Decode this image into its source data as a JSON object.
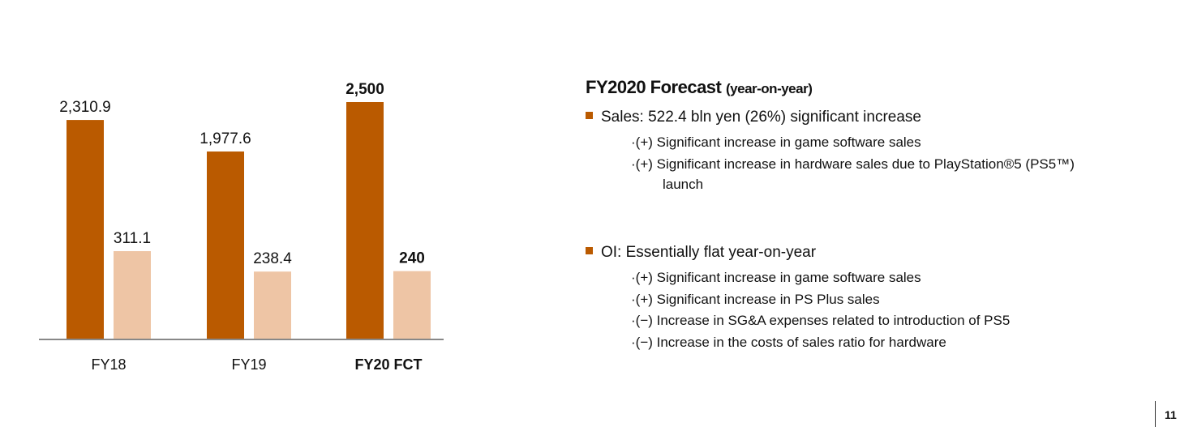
{
  "chart_data": {
    "type": "bar",
    "categories": [
      "FY18",
      "FY19",
      "FY20 FCT"
    ],
    "bold_categories": [
      false,
      false,
      true
    ],
    "series": [
      {
        "name": "Sales",
        "values": [
          2310.9,
          1977.6,
          2500
        ],
        "labels": [
          "2,310.9",
          "1,977.6",
          "2,500"
        ],
        "color": "#BA5A00"
      },
      {
        "name": "OI",
        "values": [
          311.1,
          238.4,
          240
        ],
        "labels": [
          "311.1",
          "238.4",
          "240"
        ],
        "color": "#EEC5A5"
      }
    ],
    "title": "",
    "xlabel": "",
    "ylabel": "",
    "grid": false
  },
  "panel": {
    "title": "FY2020 Forecast",
    "title_sub": "(year-on-year)",
    "accent": "#BA5A00",
    "sales": {
      "headline": "Sales: 522.4 bln yen (26%) significant increase",
      "items": [
        "·(+) Significant increase in game software sales",
        "·(+) Significant increase in hardware sales due to PlayStation®5 (PS5™)"
      ],
      "continuation": "launch"
    },
    "oi": {
      "headline": "OI: Essentially flat year-on-year",
      "items": [
        "·(+) Significant increase in game software sales",
        "·(+) Significant increase in PS Plus sales",
        "·(−) Increase in SG&A expenses related to introduction of PS5",
        "·(−) Increase in the costs of sales ratio for hardware"
      ]
    }
  },
  "page_number": "11"
}
